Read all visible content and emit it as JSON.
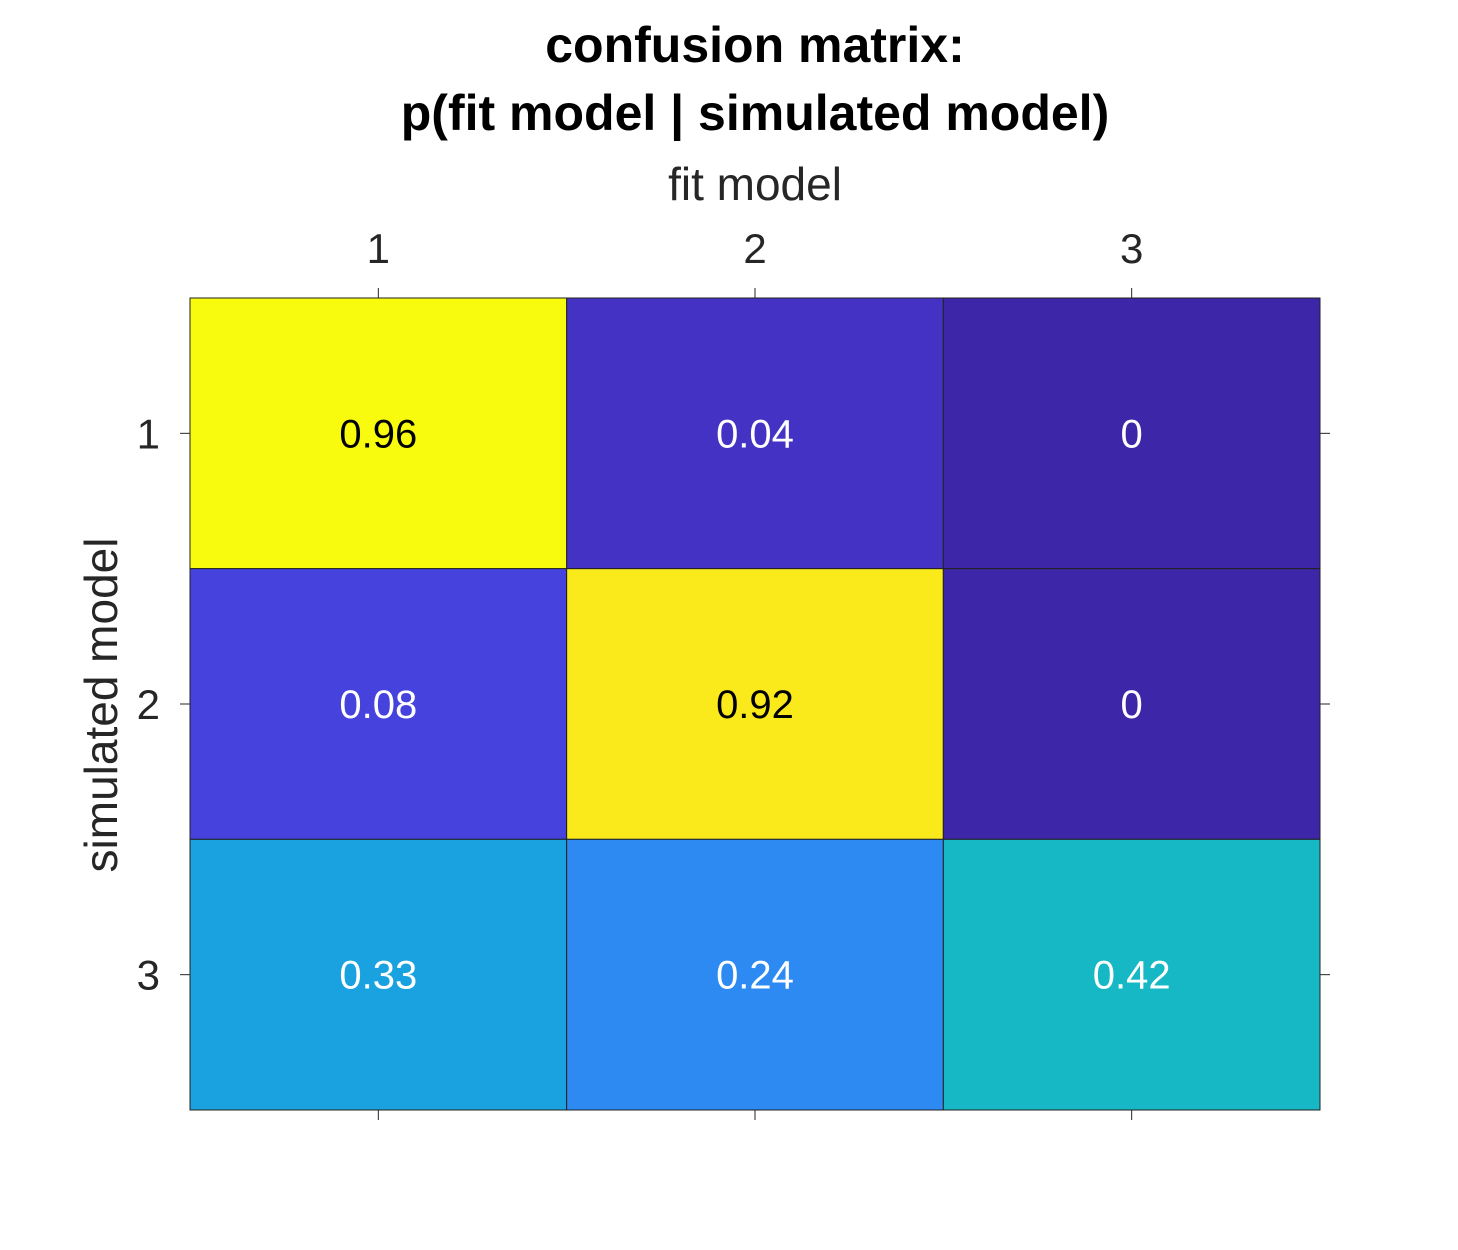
{
  "chart_data": {
    "type": "heatmap",
    "title": [
      "confusion matrix:",
      "p(fit model | simulated model)"
    ],
    "xlabel": "fit model",
    "ylabel": "simulated model",
    "x_categories": [
      "1",
      "2",
      "3"
    ],
    "y_categories": [
      "1",
      "2",
      "3"
    ],
    "values": [
      [
        0.96,
        0.04,
        0
      ],
      [
        0.08,
        0.92,
        0
      ],
      [
        0.33,
        0.24,
        0.42
      ]
    ],
    "cell_labels": [
      [
        "0.96",
        "0.04",
        "0"
      ],
      [
        "0.08",
        "0.92",
        "0"
      ],
      [
        "0.33",
        "0.24",
        "0.42"
      ]
    ],
    "colormap": "parula",
    "x_axis_position": "top",
    "grid": false
  }
}
